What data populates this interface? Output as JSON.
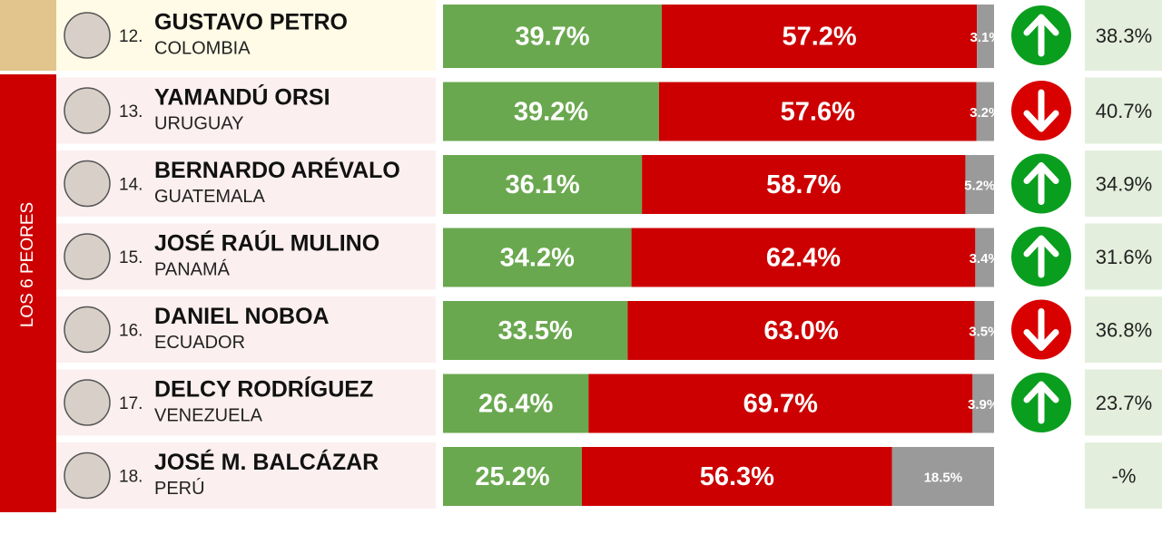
{
  "side_label": "LOS 6 PEORES",
  "rows": [
    {
      "rank": "12.",
      "name": "GUSTAVO PETRO",
      "country": "COLOMBIA",
      "approve": {
        "value": 39.7,
        "label": "39.7%"
      },
      "disapprove": {
        "value": 57.2,
        "label": "57.2%"
      },
      "unsure": {
        "value": 3.1,
        "label": "3.1%"
      },
      "trend": "up",
      "previous": "38.3%"
    },
    {
      "rank": "13.",
      "name": "YAMANDÚ ORSI",
      "country": "URUGUAY",
      "approve": {
        "value": 39.2,
        "label": "39.2%"
      },
      "disapprove": {
        "value": 57.6,
        "label": "57.6%"
      },
      "unsure": {
        "value": 3.2,
        "label": "3.2%"
      },
      "trend": "down",
      "previous": "40.7%"
    },
    {
      "rank": "14.",
      "name": "BERNARDO ARÉVALO",
      "country": "GUATEMALA",
      "approve": {
        "value": 36.1,
        "label": "36.1%"
      },
      "disapprove": {
        "value": 58.7,
        "label": "58.7%"
      },
      "unsure": {
        "value": 5.2,
        "label": "5.2%"
      },
      "trend": "up",
      "previous": "34.9%"
    },
    {
      "rank": "15.",
      "name": "JOSÉ RAÚL MULINO",
      "country": "PANAMÁ",
      "approve": {
        "value": 34.2,
        "label": "34.2%"
      },
      "disapprove": {
        "value": 62.4,
        "label": "62.4%"
      },
      "unsure": {
        "value": 3.4,
        "label": "3.4%"
      },
      "trend": "up",
      "previous": "31.6%"
    },
    {
      "rank": "16.",
      "name": "DANIEL NOBOA",
      "country": "ECUADOR",
      "approve": {
        "value": 33.5,
        "label": "33.5%"
      },
      "disapprove": {
        "value": 63.0,
        "label": "63.0%"
      },
      "unsure": {
        "value": 3.5,
        "label": "3.5%"
      },
      "trend": "down",
      "previous": "36.8%"
    },
    {
      "rank": "17.",
      "name": "DELCY RODRÍGUEZ",
      "country": "VENEZUELA",
      "approve": {
        "value": 26.4,
        "label": "26.4%"
      },
      "disapprove": {
        "value": 69.7,
        "label": "69.7%"
      },
      "unsure": {
        "value": 3.9,
        "label": "3.9%"
      },
      "trend": "up",
      "previous": "23.7%"
    },
    {
      "rank": "18.",
      "name": "JOSÉ M. BALCÁZAR",
      "country": "PERÚ",
      "approve": {
        "value": 25.2,
        "label": "25.2%"
      },
      "disapprove": {
        "value": 56.3,
        "label": "56.3%"
      },
      "unsure": {
        "value": 18.5,
        "label": "18.5%"
      },
      "trend": null,
      "previous": "-%"
    }
  ]
}
